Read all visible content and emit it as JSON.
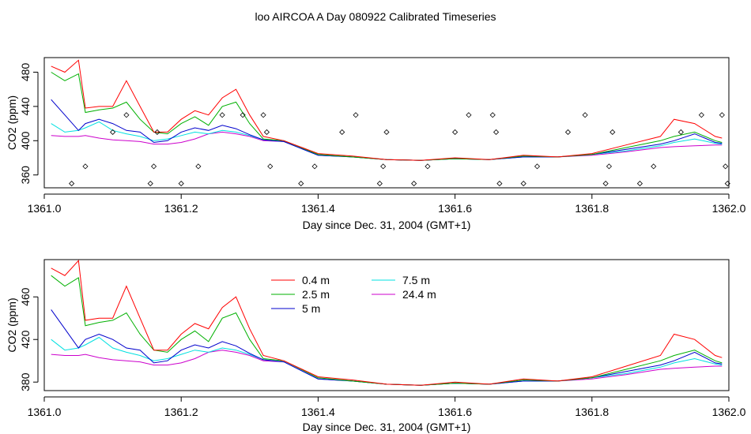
{
  "title": "loo AIRCOA A  Day 080922  Calibrated Timeseries",
  "chart_data": [
    {
      "type": "line",
      "xlabel": "Day since Dec. 31, 2004 (GMT+1)",
      "ylabel": "CO2 (ppm)",
      "xlim": [
        1361.0,
        1362.0
      ],
      "ylim": [
        345,
        497
      ],
      "xticks": [
        1361.0,
        1361.2,
        1361.4,
        1361.6,
        1361.8,
        1362.0
      ],
      "xtick_labels": [
        "1361.0",
        "1361.2",
        "1361.4",
        "1361.6",
        "1361.8",
        "1362.0"
      ],
      "yticks": [
        360,
        400,
        440,
        480
      ],
      "ytick_labels": [
        "360",
        "400",
        "440",
        "480"
      ],
      "grid": false,
      "series": [
        {
          "color": "#ff0000",
          "x": [
            1361.01,
            1361.03,
            1361.05,
            1361.06,
            1361.08,
            1361.1,
            1361.12,
            1361.14,
            1361.16,
            1361.18,
            1361.2,
            1361.22,
            1361.24,
            1361.26,
            1361.28,
            1361.3,
            1361.32,
            1361.35,
            1361.4,
            1361.45,
            1361.5,
            1361.55,
            1361.6,
            1361.65,
            1361.7,
            1361.75,
            1361.8,
            1361.85,
            1361.9,
            1361.92,
            1361.95,
            1361.98,
            1361.99
          ],
          "y": [
            487,
            480,
            494,
            438,
            440,
            440,
            470,
            440,
            410,
            410,
            425,
            435,
            430,
            450,
            460,
            430,
            405,
            400,
            385,
            382,
            378,
            377,
            380,
            378,
            383,
            381,
            385,
            395,
            405,
            425,
            420,
            405,
            403
          ]
        },
        {
          "color": "#00b000",
          "x": [
            1361.01,
            1361.03,
            1361.05,
            1361.06,
            1361.08,
            1361.1,
            1361.12,
            1361.14,
            1361.16,
            1361.18,
            1361.2,
            1361.22,
            1361.24,
            1361.26,
            1361.28,
            1361.3,
            1361.32,
            1361.35,
            1361.4,
            1361.45,
            1361.5,
            1361.55,
            1361.6,
            1361.65,
            1361.7,
            1361.75,
            1361.8,
            1361.85,
            1361.9,
            1361.92,
            1361.95,
            1361.98,
            1361.99
          ],
          "y": [
            480,
            470,
            478,
            433,
            436,
            438,
            445,
            425,
            410,
            408,
            420,
            428,
            418,
            440,
            445,
            420,
            402,
            400,
            384,
            381,
            378,
            377,
            379,
            378,
            382,
            381,
            384,
            392,
            400,
            405,
            410,
            400,
            398
          ]
        },
        {
          "color": "#0000cc",
          "x": [
            1361.01,
            1361.03,
            1361.05,
            1361.06,
            1361.08,
            1361.1,
            1361.12,
            1361.14,
            1361.16,
            1361.18,
            1361.2,
            1361.22,
            1361.24,
            1361.26,
            1361.28,
            1361.3,
            1361.32,
            1361.35,
            1361.4,
            1361.45,
            1361.5,
            1361.55,
            1361.6,
            1361.65,
            1361.7,
            1361.75,
            1361.8,
            1361.85,
            1361.9,
            1361.92,
            1361.95,
            1361.98,
            1361.99
          ],
          "y": [
            448,
            430,
            412,
            420,
            425,
            420,
            412,
            410,
            398,
            400,
            410,
            415,
            412,
            418,
            414,
            407,
            401,
            399,
            383,
            381,
            378,
            377,
            379,
            378,
            381,
            381,
            384,
            390,
            396,
            400,
            408,
            398,
            397
          ]
        },
        {
          "color": "#00e0e0",
          "x": [
            1361.01,
            1361.03,
            1361.05,
            1361.06,
            1361.08,
            1361.1,
            1361.12,
            1361.14,
            1361.16,
            1361.18,
            1361.2,
            1361.22,
            1361.24,
            1361.26,
            1361.28,
            1361.3,
            1361.32,
            1361.35,
            1361.4,
            1361.45,
            1361.5,
            1361.55,
            1361.6,
            1361.65,
            1361.7,
            1361.75,
            1361.8,
            1361.85,
            1361.9,
            1361.92,
            1361.95,
            1361.98,
            1361.99
          ],
          "y": [
            420,
            410,
            412,
            415,
            422,
            412,
            408,
            405,
            400,
            402,
            406,
            410,
            408,
            412,
            410,
            406,
            401,
            399,
            383,
            381,
            378,
            377,
            379,
            378,
            381,
            381,
            384,
            388,
            394,
            398,
            402,
            397,
            396
          ]
        },
        {
          "color": "#cc00cc",
          "x": [
            1361.01,
            1361.03,
            1361.05,
            1361.06,
            1361.08,
            1361.1,
            1361.12,
            1361.14,
            1361.16,
            1361.18,
            1361.2,
            1361.22,
            1361.24,
            1361.26,
            1361.28,
            1361.3,
            1361.32,
            1361.35,
            1361.4,
            1361.45,
            1361.5,
            1361.55,
            1361.6,
            1361.65,
            1361.7,
            1361.75,
            1361.8,
            1361.85,
            1361.9,
            1361.92,
            1361.95,
            1361.98,
            1361.99
          ],
          "y": [
            406,
            405,
            405,
            406,
            403,
            401,
            400,
            399,
            396,
            396,
            398,
            402,
            408,
            410,
            408,
            405,
            400,
            399,
            383,
            381,
            378,
            377,
            379,
            378,
            381,
            381,
            383,
            387,
            392,
            393,
            394,
            395,
            395
          ]
        }
      ],
      "markers": {
        "x": [
          1361.04,
          1361.06,
          1361.1,
          1361.12,
          1361.155,
          1361.16,
          1361.165,
          1361.2,
          1361.225,
          1361.26,
          1361.29,
          1361.32,
          1361.325,
          1361.33,
          1361.375,
          1361.395,
          1361.435,
          1361.455,
          1361.49,
          1361.495,
          1361.5,
          1361.54,
          1361.56,
          1361.6,
          1361.62,
          1361.655,
          1361.66,
          1361.665,
          1361.7,
          1361.72,
          1361.765,
          1361.79,
          1361.82,
          1361.825,
          1361.83,
          1361.87,
          1361.89,
          1361.93,
          1361.96,
          1361.99,
          1361.995,
          1361.998
        ],
        "y": [
          350,
          370,
          410,
          430,
          350,
          370,
          410,
          350,
          370,
          430,
          430,
          430,
          410,
          370,
          350,
          370,
          410,
          430,
          350,
          370,
          410,
          350,
          370,
          410,
          430,
          430,
          410,
          350,
          350,
          370,
          410,
          430,
          350,
          370,
          410,
          350,
          370,
          410,
          430,
          430,
          370,
          350
        ]
      }
    },
    {
      "type": "line",
      "xlabel": "Day since Dec. 31, 2004 (GMT+1)",
      "ylabel": "CO2 (ppm)",
      "xlim": [
        1361.0,
        1362.0
      ],
      "ylim": [
        372,
        495
      ],
      "xticks": [
        1361.0,
        1361.2,
        1361.4,
        1361.6,
        1361.8,
        1362.0
      ],
      "xtick_labels": [
        "1361.0",
        "1361.2",
        "1361.4",
        "1361.6",
        "1361.8",
        "1362.0"
      ],
      "yticks": [
        380,
        420,
        460
      ],
      "ytick_labels": [
        "380",
        "420",
        "460"
      ],
      "grid": false,
      "legend": {
        "placement": "top-left inside",
        "entries": [
          {
            "name": "0.4 m",
            "color": "#ff0000"
          },
          {
            "name": "2.5 m",
            "color": "#00b000"
          },
          {
            "name": "5 m",
            "color": "#0000cc"
          },
          {
            "name": "7.5 m",
            "color": "#00e0e0"
          },
          {
            "name": "24.4 m",
            "color": "#cc00cc"
          }
        ]
      },
      "series": [
        {
          "name": "0.4 m",
          "color": "#ff0000",
          "x": [
            1361.01,
            1361.03,
            1361.05,
            1361.06,
            1361.08,
            1361.1,
            1361.12,
            1361.14,
            1361.16,
            1361.18,
            1361.2,
            1361.22,
            1361.24,
            1361.26,
            1361.28,
            1361.3,
            1361.32,
            1361.35,
            1361.4,
            1361.45,
            1361.5,
            1361.55,
            1361.6,
            1361.65,
            1361.7,
            1361.75,
            1361.8,
            1361.85,
            1361.9,
            1361.92,
            1361.95,
            1361.98,
            1361.99
          ],
          "y": [
            487,
            480,
            494,
            438,
            440,
            440,
            470,
            440,
            410,
            410,
            425,
            435,
            430,
            450,
            460,
            430,
            405,
            400,
            385,
            382,
            378,
            377,
            380,
            378,
            383,
            381,
            385,
            395,
            405,
            425,
            420,
            405,
            403
          ]
        },
        {
          "name": "2.5 m",
          "color": "#00b000",
          "x": [
            1361.01,
            1361.03,
            1361.05,
            1361.06,
            1361.08,
            1361.1,
            1361.12,
            1361.14,
            1361.16,
            1361.18,
            1361.2,
            1361.22,
            1361.24,
            1361.26,
            1361.28,
            1361.3,
            1361.32,
            1361.35,
            1361.4,
            1361.45,
            1361.5,
            1361.55,
            1361.6,
            1361.65,
            1361.7,
            1361.75,
            1361.8,
            1361.85,
            1361.9,
            1361.92,
            1361.95,
            1361.98,
            1361.99
          ],
          "y": [
            480,
            470,
            478,
            433,
            436,
            438,
            445,
            425,
            410,
            408,
            420,
            428,
            418,
            440,
            445,
            420,
            402,
            400,
            384,
            381,
            378,
            377,
            379,
            378,
            382,
            381,
            384,
            392,
            400,
            405,
            410,
            400,
            398
          ]
        },
        {
          "name": "5 m",
          "color": "#0000cc",
          "x": [
            1361.01,
            1361.03,
            1361.05,
            1361.06,
            1361.08,
            1361.1,
            1361.12,
            1361.14,
            1361.16,
            1361.18,
            1361.2,
            1361.22,
            1361.24,
            1361.26,
            1361.28,
            1361.3,
            1361.32,
            1361.35,
            1361.4,
            1361.45,
            1361.5,
            1361.55,
            1361.6,
            1361.65,
            1361.7,
            1361.75,
            1361.8,
            1361.85,
            1361.9,
            1361.92,
            1361.95,
            1361.98,
            1361.99
          ],
          "y": [
            448,
            430,
            412,
            420,
            425,
            420,
            412,
            410,
            398,
            400,
            410,
            415,
            412,
            418,
            414,
            407,
            401,
            399,
            383,
            381,
            378,
            377,
            379,
            378,
            381,
            381,
            384,
            390,
            396,
            400,
            408,
            398,
            397
          ]
        },
        {
          "name": "7.5 m",
          "color": "#00e0e0",
          "x": [
            1361.01,
            1361.03,
            1361.05,
            1361.06,
            1361.08,
            1361.1,
            1361.12,
            1361.14,
            1361.16,
            1361.18,
            1361.2,
            1361.22,
            1361.24,
            1361.26,
            1361.28,
            1361.3,
            1361.32,
            1361.35,
            1361.4,
            1361.45,
            1361.5,
            1361.55,
            1361.6,
            1361.65,
            1361.7,
            1361.75,
            1361.8,
            1361.85,
            1361.9,
            1361.92,
            1361.95,
            1361.98,
            1361.99
          ],
          "y": [
            420,
            410,
            412,
            415,
            422,
            412,
            408,
            405,
            400,
            402,
            406,
            410,
            408,
            412,
            410,
            406,
            401,
            399,
            383,
            381,
            378,
            377,
            379,
            378,
            381,
            381,
            384,
            388,
            394,
            398,
            402,
            397,
            396
          ]
        },
        {
          "name": "24.4 m",
          "color": "#cc00cc",
          "x": [
            1361.01,
            1361.03,
            1361.05,
            1361.06,
            1361.08,
            1361.1,
            1361.12,
            1361.14,
            1361.16,
            1361.18,
            1361.2,
            1361.22,
            1361.24,
            1361.26,
            1361.28,
            1361.3,
            1361.32,
            1361.35,
            1361.4,
            1361.45,
            1361.5,
            1361.55,
            1361.6,
            1361.65,
            1361.7,
            1361.75,
            1361.8,
            1361.85,
            1361.9,
            1361.92,
            1361.95,
            1361.98,
            1361.99
          ],
          "y": [
            406,
            405,
            405,
            406,
            403,
            401,
            400,
            399,
            396,
            396,
            398,
            402,
            408,
            410,
            408,
            405,
            400,
            399,
            383,
            381,
            378,
            377,
            379,
            378,
            381,
            381,
            383,
            387,
            392,
            393,
            394,
            395,
            395
          ]
        }
      ]
    }
  ]
}
